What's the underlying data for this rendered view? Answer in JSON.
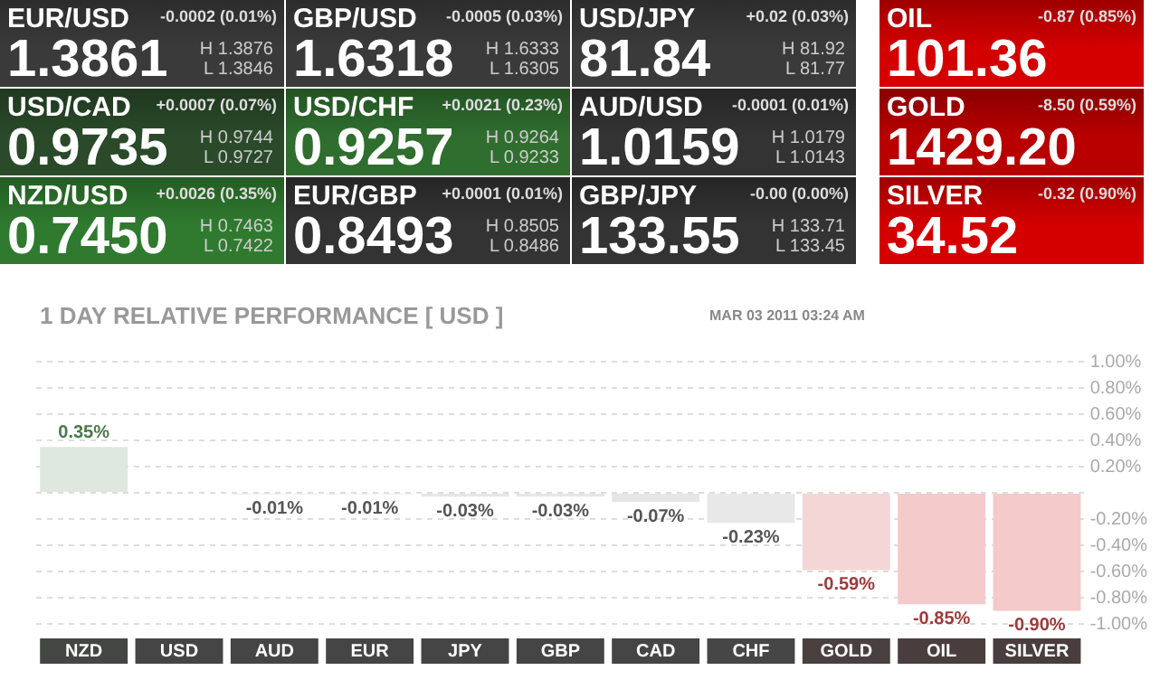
{
  "chart_data": [
    {
      "type": "other",
      "categories": [
        "EUR/USD",
        "USD/CAD",
        "NZD/USD",
        "GBP/USD",
        "USD/CHF",
        "EUR/GBP",
        "USD/JPY",
        "AUD/USD",
        "GBP/JPY",
        "OIL",
        "GOLD",
        "SILVER"
      ],
      "value_labels": [
        "1.3861",
        "0.9735",
        "0.7450",
        "1.6318",
        "0.9257",
        "0.8493",
        "81.84",
        "1.0159",
        "133.55",
        "101.36",
        "1429.20",
        "34.52"
      ],
      "colors": [
        "#3a3a3a",
        "#2a4a2a",
        "#2f7a2f",
        "#3a3a3a",
        "#2f6e2f",
        "#333333",
        "#3a3a3a",
        "#333333",
        "#333333",
        "#d40000",
        "#b80000",
        "#d40000"
      ],
      "annotations": [
        "-0.0002 (0.01%)",
        "+0.0007 (0.07%)",
        "+0.0026 (0.35%)",
        "-0.0005 (0.03%)",
        "+0.0021 (0.23%)",
        "+0.0001 (0.01%)",
        "+0.02 (0.03%)",
        "-0.0001 (0.01%)",
        "-0.00 (0.00%)",
        "-0.87 (0.85%)",
        "-8.50 (0.59%)",
        "-0.32 (0.90%)",
        "H 1.3876",
        "L 1.3846",
        "H 0.9744",
        "L 0.9727",
        "H 0.7463",
        "L 0.7422",
        "H 1.6333",
        "L 1.6305",
        "H 0.9264",
        "L 0.9233",
        "H 0.8505",
        "L 0.8486",
        "H 81.92",
        "L 81.77",
        "H 1.0179",
        "L 1.0143",
        "H 133.71",
        "L 133.45"
      ]
    },
    {
      "type": "bar",
      "title": "1 DAY RELATIVE PERFORMANCE   [ USD ]",
      "subtitle": "MAR 03 2011 03:24 AM",
      "categories": [
        "NZD",
        "USD",
        "AUD",
        "EUR",
        "JPY",
        "GBP",
        "CAD",
        "CHF",
        "GOLD",
        "OIL",
        "SILVER"
      ],
      "values": [
        0.35,
        0,
        -0.01,
        -0.01,
        -0.03,
        -0.03,
        -0.07,
        -0.23,
        -0.59,
        -0.85,
        -0.9
      ],
      "value_labels": [
        "0.35%",
        null,
        "-0.01%",
        "-0.01%",
        "-0.03%",
        "-0.03%",
        "-0.07%",
        "-0.23%",
        "-0.59%",
        "-0.85%",
        "-0.90%"
      ],
      "colors": [
        "#dfe8df",
        "#e6e6e6",
        "#e6e6e6",
        "#e6e6e6",
        "#e6e6e6",
        "#e6e6e6",
        "#e6e6e6",
        "#e8e8e8",
        "#f5d6d6",
        "#f5caca",
        "#f5caca"
      ],
      "ylim": [
        -1,
        1
      ],
      "yticks": [
        {
          "value": -1,
          "label": "-1.00%"
        },
        {
          "value": -0.8,
          "label": "-0.80%"
        },
        {
          "value": -0.6,
          "label": "-0.60%"
        },
        {
          "value": -0.4,
          "label": "-0.40%"
        },
        {
          "value": -0.2,
          "label": "-0.20%"
        },
        {
          "value": 0,
          "label": null
        },
        {
          "value": 0.2,
          "label": "0.20%"
        },
        {
          "value": 0.4,
          "label": "0.40%"
        },
        {
          "value": 0.6,
          "label": "0.60%"
        },
        {
          "value": 0.8,
          "label": "0.80%"
        },
        {
          "value": 1,
          "label": "1.00%"
        }
      ],
      "grid": "y",
      "line_style": "dashed",
      "legend": false
    }
  ]
}
